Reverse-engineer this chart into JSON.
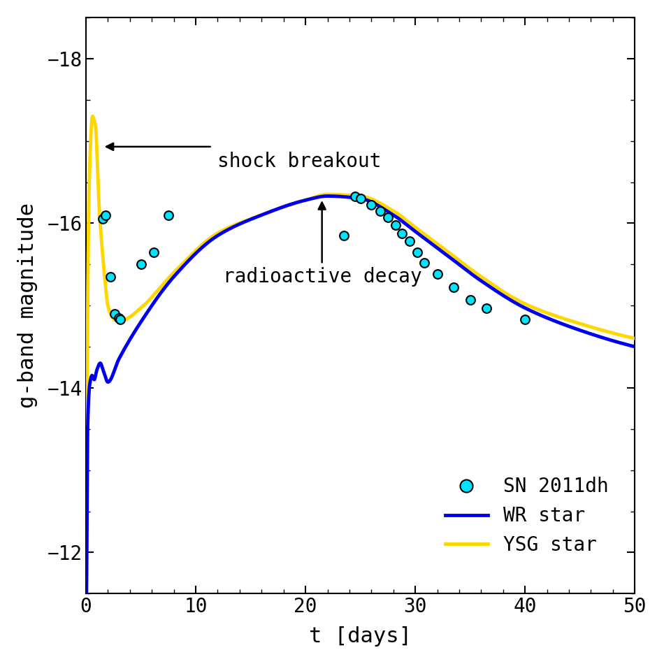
{
  "xlim": [
    0,
    50
  ],
  "ylim": [
    -11.5,
    -18.5
  ],
  "xlabel": "t [days]",
  "ylabel": "g-band magnitude",
  "xticks": [
    0,
    10,
    20,
    30,
    40,
    50
  ],
  "yticks": [
    -18,
    -16,
    -14,
    -12
  ],
  "obs_x": [
    1.5,
    1.8,
    2.2,
    2.6,
    3.0,
    3.1,
    5.0,
    6.2,
    7.5,
    23.5,
    24.5,
    25.0,
    26.0,
    26.8,
    27.5,
    28.2,
    28.8,
    29.5,
    30.2,
    30.8,
    32.0,
    33.5,
    35.0,
    36.5,
    40.0
  ],
  "obs_y": [
    -16.05,
    -16.1,
    -15.35,
    -14.9,
    -14.85,
    -14.83,
    -15.5,
    -15.65,
    -16.1,
    -15.85,
    -16.33,
    -16.3,
    -16.22,
    -16.15,
    -16.07,
    -15.98,
    -15.88,
    -15.78,
    -15.65,
    -15.52,
    -15.38,
    -15.22,
    -15.07,
    -14.97,
    -14.83
  ],
  "obs_color": "#00E5FF",
  "obs_edgecolor": "#000000",
  "obs_markersize": 11,
  "wr_color": "#0000EE",
  "ysg_color": "#FFD700",
  "line_width": 3.5,
  "bg_color": "#FFFFFF",
  "spine_color": "#000000",
  "font_family": "monospace"
}
